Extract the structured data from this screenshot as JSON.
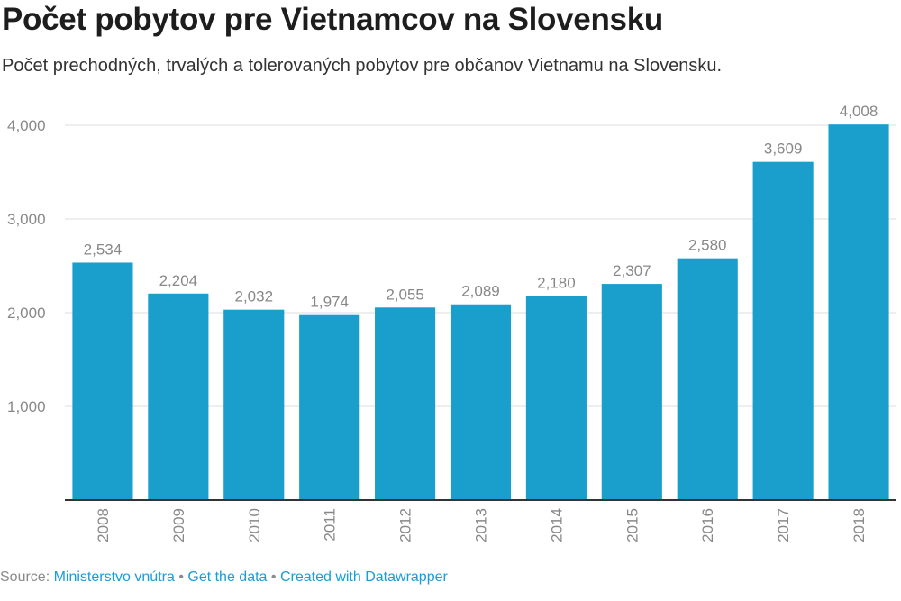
{
  "header": {
    "title": "Počet pobytov pre Vietnamcov na Slovensku",
    "subtitle": "Počet prechodných, trvalých a tolerovaných pobytov pre občanov Vietnamu na Slovensku."
  },
  "footer": {
    "source_label": "Source:",
    "source_link": "Ministerstvo vnútra",
    "separator": "•",
    "get_data": "Get the data",
    "created_with": "Created with Datawrapper"
  },
  "colors": {
    "bar": "#1a9fcd",
    "grid": "#dddddd",
    "axis": "#333333",
    "tick_text": "#888888",
    "link": "#1a9cd8"
  },
  "chart_data": {
    "type": "bar",
    "categories": [
      "2008",
      "2009",
      "2010",
      "2011",
      "2012",
      "2013",
      "2014",
      "2015",
      "2016",
      "2017",
      "2018"
    ],
    "values": [
      2534,
      2204,
      2032,
      1974,
      2055,
      2089,
      2180,
      2307,
      2580,
      3609,
      4008
    ],
    "value_labels": [
      "2,534",
      "2,204",
      "2,032",
      "1,974",
      "2,055",
      "2,089",
      "2,180",
      "2,307",
      "2,580",
      "3,609",
      "4,008"
    ],
    "y_ticks": [
      1000,
      2000,
      3000,
      4000
    ],
    "y_tick_labels": [
      "1,000",
      "2,000",
      "3,000",
      "4,000"
    ],
    "ylim": [
      0,
      4000
    ],
    "grid": true,
    "x_tick_rotation": "vertical"
  }
}
